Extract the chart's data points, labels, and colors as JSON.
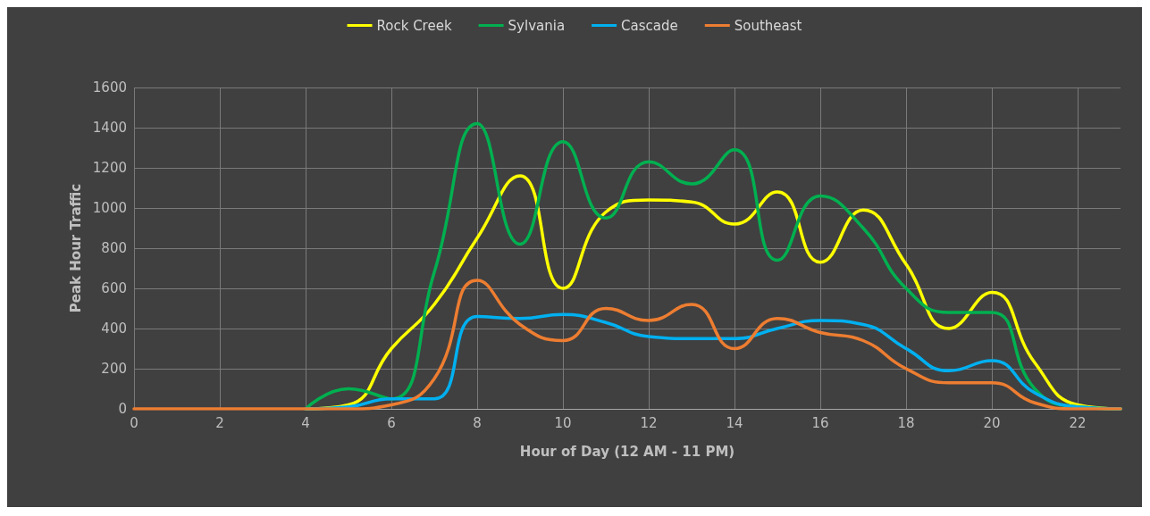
{
  "chart_data": {
    "type": "line",
    "xlabel": "Hour of Day (12 AM - 11 PM)",
    "ylabel": "Peak Hour Traffic",
    "x": [
      0,
      1,
      2,
      3,
      4,
      5,
      6,
      7,
      8,
      9,
      10,
      11,
      12,
      13,
      14,
      15,
      16,
      17,
      18,
      19,
      20,
      21,
      22,
      23
    ],
    "series": [
      {
        "name": "Rock Creek",
        "color": "#ffff00",
        "values": [
          null,
          null,
          null,
          null,
          0,
          20,
          300,
          520,
          850,
          1160,
          600,
          980,
          1040,
          1030,
          920,
          1080,
          730,
          990,
          720,
          400,
          580,
          230,
          20,
          0
        ]
      },
      {
        "name": "Sylvania",
        "color": "#00b050",
        "values": [
          null,
          null,
          null,
          null,
          0,
          100,
          50,
          680,
          1420,
          820,
          1330,
          950,
          1230,
          1120,
          1290,
          740,
          1060,
          900,
          600,
          480,
          480,
          100,
          10,
          0
        ]
      },
      {
        "name": "Cascade",
        "color": "#00b0f0",
        "values": [
          null,
          null,
          null,
          null,
          0,
          10,
          50,
          50,
          460,
          450,
          470,
          430,
          360,
          350,
          350,
          400,
          440,
          420,
          300,
          190,
          240,
          80,
          10,
          0
        ]
      },
      {
        "name": "Southeast",
        "color": "#ed7d31",
        "values": [
          0,
          0,
          0,
          0,
          0,
          0,
          20,
          150,
          640,
          420,
          340,
          500,
          440,
          520,
          300,
          450,
          380,
          340,
          200,
          130,
          130,
          30,
          0,
          0
        ]
      }
    ],
    "xlim": [
      0,
      23
    ],
    "xticks": [
      0,
      2,
      4,
      6,
      8,
      10,
      12,
      14,
      16,
      18,
      20,
      22
    ],
    "ylim": [
      0,
      1600
    ],
    "yticks": [
      0,
      200,
      400,
      600,
      800,
      1000,
      1200,
      1400,
      1600
    ],
    "grid": true,
    "legend": "top",
    "marker": "none",
    "line_style": "solid"
  }
}
